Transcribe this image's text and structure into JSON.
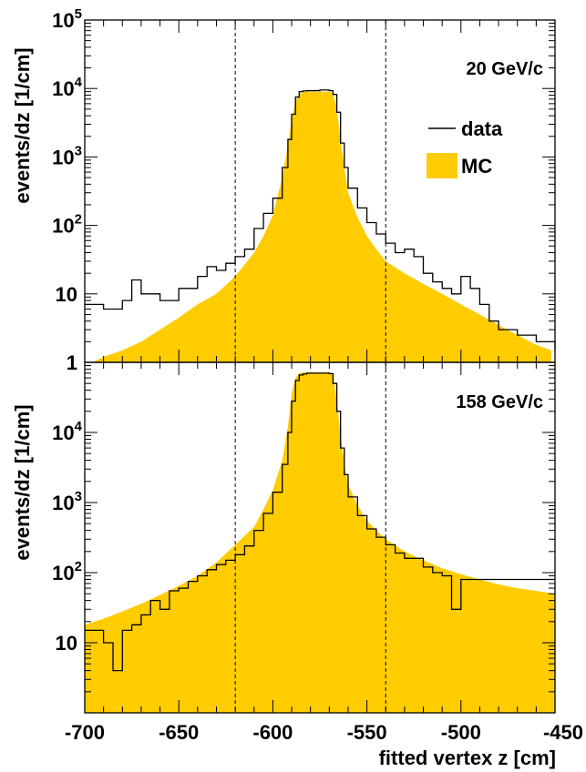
{
  "x_axis": {
    "label": "fitted vertex z [cm]",
    "range": [
      -700,
      -450
    ],
    "ticks": [
      "-700",
      "-650",
      "-600",
      "-550",
      "-500",
      "-450"
    ]
  },
  "cut_lines_z": [
    -620,
    -540
  ],
  "colors": {
    "mc_fill": "#ffcc00",
    "data_line": "#000000",
    "frame": "#000000",
    "cut_line": "#000000"
  },
  "legend": {
    "data": "data",
    "mc": "MC"
  },
  "chart_data": [
    {
      "type": "area",
      "title": "20 GeV/c",
      "xlabel": "fitted vertex z [cm]",
      "ylabel": "events/dz [1/cm]",
      "log_y": true,
      "xlim": [
        -700,
        -450
      ],
      "ylim": [
        1,
        100000
      ],
      "y_ticks": [
        {
          "value": 1,
          "label": "1",
          "sup": ""
        },
        {
          "value": 10,
          "label": "10",
          "sup": ""
        },
        {
          "value": 100,
          "label": "10",
          "sup": "2"
        },
        {
          "value": 1000,
          "label": "10",
          "sup": "3"
        },
        {
          "value": 10000,
          "label": "10",
          "sup": "4"
        },
        {
          "value": 100000,
          "label": "10",
          "sup": "5"
        }
      ],
      "series": [
        {
          "name": "MC",
          "style": "filled",
          "x": [
            -696,
            -690,
            -680,
            -670,
            -660,
            -650,
            -640,
            -630,
            -620,
            -610,
            -605,
            -600,
            -595,
            -592,
            -590,
            -588,
            -586,
            -584,
            -582,
            -580,
            -575,
            -570,
            -568,
            -566,
            -564,
            -562,
            -560,
            -555,
            -550,
            -545,
            -540,
            -530,
            -520,
            -510,
            -500,
            -490,
            -480,
            -470,
            -460,
            -452
          ],
          "y": [
            1,
            1.2,
            1.5,
            2,
            3,
            4.5,
            7,
            10,
            18,
            40,
            70,
            140,
            500,
            1500,
            3500,
            6500,
            8200,
            8800,
            9000,
            9000,
            9000,
            9000,
            8500,
            5000,
            1800,
            700,
            300,
            130,
            70,
            45,
            30,
            20,
            14,
            10,
            7,
            5,
            3.5,
            2.5,
            1.8,
            1.5
          ]
        },
        {
          "name": "data",
          "style": "step",
          "x": [
            -700,
            -690,
            -680,
            -675,
            -670,
            -660,
            -650,
            -640,
            -635,
            -630,
            -625,
            -620,
            -615,
            -610,
            -605,
            -600,
            -595,
            -592,
            -590,
            -588,
            -586,
            -584,
            -582,
            -580,
            -575,
            -570,
            -568,
            -566,
            -564,
            -562,
            -560,
            -555,
            -550,
            -545,
            -540,
            -535,
            -530,
            -525,
            -520,
            -515,
            -510,
            -505,
            -500,
            -495,
            -490,
            -485,
            -480,
            -470,
            -460,
            -450
          ],
          "y": [
            7,
            6,
            8,
            16,
            10,
            8,
            12,
            18,
            25,
            22,
            28,
            35,
            45,
            90,
            150,
            250,
            700,
            1800,
            4200,
            7500,
            9000,
            9200,
            9300,
            9300,
            9500,
            9300,
            8200,
            4500,
            1600,
            700,
            350,
            180,
            110,
            75,
            55,
            40,
            45,
            35,
            20,
            15,
            12,
            10,
            18,
            12,
            7,
            4,
            3,
            2.5,
            2,
            1.5
          ]
        }
      ]
    },
    {
      "type": "area",
      "title": "158 GeV/c",
      "xlabel": "fitted vertex z [cm]",
      "ylabel": "events/dz [1/cm]",
      "log_y": true,
      "xlim": [
        -700,
        -450
      ],
      "ylim": [
        1,
        100000
      ],
      "y_ticks": [
        {
          "value": 10,
          "label": "10",
          "sup": ""
        },
        {
          "value": 100,
          "label": "10",
          "sup": "2"
        },
        {
          "value": 1000,
          "label": "10",
          "sup": "3"
        },
        {
          "value": 10000,
          "label": "10",
          "sup": "4"
        }
      ],
      "series": [
        {
          "name": "MC",
          "style": "filled",
          "x": [
            -700,
            -690,
            -680,
            -670,
            -660,
            -650,
            -640,
            -630,
            -620,
            -610,
            -605,
            -600,
            -595,
            -592,
            -590,
            -588,
            -586,
            -584,
            -582,
            -580,
            -575,
            -570,
            -568,
            -566,
            -564,
            -562,
            -560,
            -555,
            -550,
            -545,
            -540,
            -530,
            -520,
            -510,
            -500,
            -490,
            -480,
            -470,
            -460,
            -450
          ],
          "y": [
            18,
            22,
            28,
            36,
            48,
            65,
            90,
            140,
            250,
            450,
            800,
            1500,
            4000,
            12000,
            35000,
            60000,
            70000,
            72000,
            72000,
            72000,
            72000,
            72000,
            65000,
            28000,
            9000,
            3500,
            1800,
            900,
            550,
            400,
            300,
            200,
            150,
            115,
            95,
            80,
            68,
            60,
            55,
            50
          ]
        },
        {
          "name": "data",
          "style": "step",
          "x": [
            -700,
            -690,
            -685,
            -680,
            -675,
            -670,
            -665,
            -660,
            -655,
            -650,
            -645,
            -640,
            -635,
            -630,
            -625,
            -620,
            -615,
            -610,
            -605,
            -600,
            -595,
            -592,
            -590,
            -588,
            -586,
            -584,
            -582,
            -580,
            -575,
            -570,
            -568,
            -566,
            -564,
            -562,
            -560,
            -555,
            -550,
            -545,
            -540,
            -535,
            -530,
            -520,
            -515,
            -510,
            -505,
            -500,
            -490,
            -480,
            -470,
            -460,
            -450
          ],
          "y": [
            15,
            10,
            4,
            15,
            18,
            25,
            40,
            30,
            55,
            60,
            75,
            90,
            110,
            130,
            150,
            180,
            240,
            400,
            700,
            1400,
            3500,
            10000,
            28000,
            55000,
            66000,
            68000,
            70000,
            70000,
            70000,
            69000,
            50000,
            20000,
            6000,
            2500,
            1200,
            650,
            420,
            320,
            250,
            190,
            160,
            120,
            100,
            90,
            30,
            80,
            80,
            80,
            80,
            80,
            80
          ]
        }
      ]
    }
  ]
}
